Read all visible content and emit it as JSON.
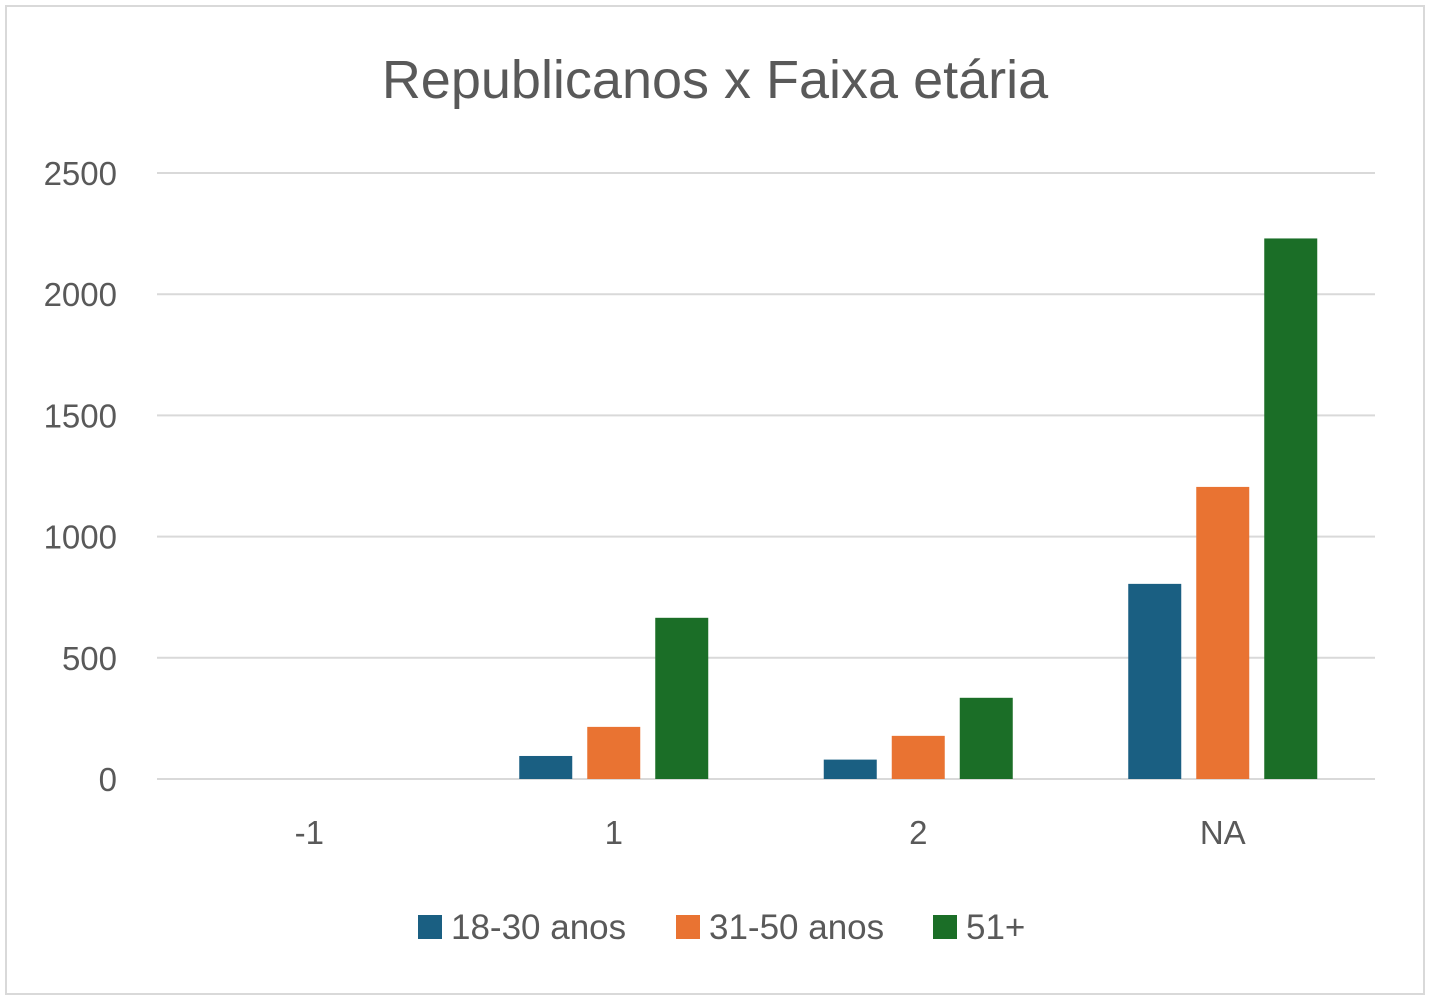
{
  "chart_data": {
    "type": "bar",
    "title": "Republicanos x Faixa etária",
    "xlabel": "",
    "ylabel": "",
    "categories": [
      "-1",
      "1",
      "2",
      "NA"
    ],
    "series": [
      {
        "name": "18-30 anos",
        "color": "#1a5f82",
        "values": [
          0,
          95,
          80,
          805
        ]
      },
      {
        "name": "31-50 anos",
        "color": "#e97332",
        "values": [
          0,
          215,
          178,
          1205
        ]
      },
      {
        "name": "51+",
        "color": "#1b6e27",
        "values": [
          0,
          665,
          335,
          2230
        ]
      }
    ],
    "ylim": [
      0,
      2500
    ],
    "yticks": [
      "0",
      "500",
      "1000",
      "1500",
      "2000",
      "2500"
    ],
    "grid": true,
    "legend_position": "bottom",
    "colors": {
      "gridline": "#d9d9d9",
      "text": "#595959",
      "border": "#d9d9d9"
    }
  }
}
